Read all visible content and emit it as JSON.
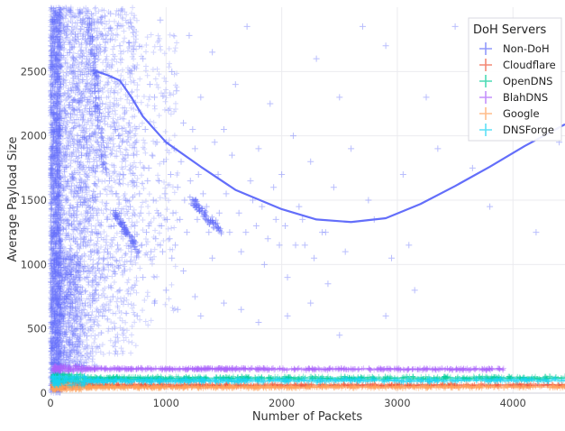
{
  "chart_data": {
    "type": "scatter",
    "xlabel": "Number of Packets",
    "ylabel": "Average Payload Size",
    "xlim": [
      0,
      4450
    ],
    "ylim": [
      0,
      3000
    ],
    "x_ticks": [
      0,
      1000,
      2000,
      3000,
      4000
    ],
    "x_tick_labels": [
      "0",
      "1000",
      "2000",
      "3000",
      "4000"
    ],
    "y_ticks": [
      0,
      500,
      1000,
      1500,
      2000,
      2500
    ],
    "y_tick_labels": [
      "0",
      "500",
      "1000",
      "1500",
      "2000",
      "2500"
    ],
    "grid": true,
    "marker": "cross",
    "legend": {
      "title": "DoH Servers",
      "placement": "top-right"
    },
    "series": [
      {
        "name": "Non-DoH",
        "color": "#636efa",
        "points": [
          [
            60,
            2900
          ],
          [
            90,
            2700
          ],
          [
            150,
            2850
          ],
          [
            200,
            2600
          ],
          [
            250,
            2950
          ],
          [
            300,
            2750
          ],
          [
            330,
            2500
          ],
          [
            380,
            2880
          ],
          [
            400,
            2650
          ],
          [
            420,
            2350
          ],
          [
            450,
            2250
          ],
          [
            480,
            2780
          ],
          [
            500,
            2150
          ],
          [
            520,
            2950
          ],
          [
            560,
            2050
          ],
          [
            600,
            2700
          ],
          [
            620,
            1950
          ],
          [
            650,
            2400
          ],
          [
            700,
            2850
          ],
          [
            720,
            1850
          ],
          [
            760,
            2200
          ],
          [
            800,
            2600
          ],
          [
            850,
            1750
          ],
          [
            900,
            2300
          ],
          [
            950,
            2900
          ],
          [
            1000,
            1950
          ],
          [
            1050,
            2500
          ],
          [
            1100,
            1600
          ],
          [
            1150,
            2100
          ],
          [
            1200,
            2780
          ],
          [
            1250,
            1900
          ],
          [
            1300,
            2300
          ],
          [
            1350,
            1450
          ],
          [
            1400,
            2650
          ],
          [
            1450,
            1700
          ],
          [
            1500,
            2050
          ],
          [
            1550,
            1250
          ],
          [
            1600,
            2400
          ],
          [
            1650,
            1100
          ],
          [
            1700,
            2850
          ],
          [
            1750,
            1500
          ],
          [
            1800,
            1900
          ],
          [
            1850,
            1000
          ],
          [
            1900,
            2250
          ],
          [
            1950,
            1350
          ],
          [
            2000,
            1700
          ],
          [
            2050,
            900
          ],
          [
            2100,
            2000
          ],
          [
            2150,
            1450
          ],
          [
            2200,
            1150
          ],
          [
            2250,
            1800
          ],
          [
            2300,
            2600
          ],
          [
            2350,
            1250
          ],
          [
            2400,
            850
          ],
          [
            2450,
            1600
          ],
          [
            2500,
            2300
          ],
          [
            2550,
            1100
          ],
          [
            2600,
            1900
          ],
          [
            2700,
            2850
          ],
          [
            2750,
            1500
          ],
          [
            2800,
            1350
          ],
          [
            2900,
            2700
          ],
          [
            2950,
            1050
          ],
          [
            3050,
            1700
          ],
          [
            3100,
            1150
          ],
          [
            3150,
            800
          ],
          [
            3250,
            2300
          ],
          [
            3350,
            1900
          ],
          [
            3500,
            2850
          ],
          [
            3650,
            1750
          ],
          [
            3800,
            1450
          ],
          [
            3950,
            2700
          ],
          [
            4200,
            1250
          ],
          [
            4400,
            1950
          ],
          [
            100,
            1800
          ],
          [
            150,
            1500
          ],
          [
            200,
            1200
          ],
          [
            250,
            900
          ],
          [
            300,
            700
          ],
          [
            350,
            1100
          ],
          [
            400,
            1400
          ],
          [
            450,
            600
          ],
          [
            500,
            1000
          ],
          [
            550,
            1300
          ],
          [
            600,
            800
          ],
          [
            650,
            1500
          ],
          [
            700,
            1100
          ],
          [
            750,
            600
          ],
          [
            800,
            900
          ],
          [
            850,
            1300
          ],
          [
            900,
            700
          ],
          [
            950,
            1150
          ],
          [
            1000,
            800
          ],
          [
            1050,
            1050
          ],
          [
            1100,
            650
          ],
          [
            1150,
            950
          ],
          [
            1250,
            750
          ],
          [
            1300,
            600
          ],
          [
            1400,
            1050
          ],
          [
            1500,
            700
          ],
          [
            1650,
            650
          ],
          [
            1800,
            550
          ],
          [
            2050,
            600
          ],
          [
            2250,
            700
          ],
          [
            2500,
            450
          ],
          [
            2900,
            600
          ],
          [
            50,
            1000
          ],
          [
            60,
            1500
          ],
          [
            70,
            2000
          ],
          [
            80,
            1200
          ],
          [
            90,
            2400
          ],
          [
            100,
            600
          ],
          [
            110,
            1600
          ],
          [
            120,
            2200
          ],
          [
            130,
            900
          ],
          [
            140,
            1900
          ],
          [
            160,
            1300
          ],
          [
            170,
            2500
          ],
          [
            180,
            700
          ],
          [
            190,
            1700
          ],
          [
            210,
            2100
          ],
          [
            220,
            1000
          ],
          [
            230,
            1450
          ],
          [
            240,
            2750
          ],
          [
            260,
            1150
          ],
          [
            270,
            1850
          ],
          [
            280,
            500
          ],
          [
            290,
            2300
          ],
          [
            310,
            1600
          ],
          [
            320,
            950
          ],
          [
            340,
            2000
          ],
          [
            360,
            1250
          ],
          [
            370,
            1750
          ],
          [
            390,
            800
          ],
          [
            410,
            1950
          ],
          [
            430,
            1550
          ],
          [
            440,
            2150
          ],
          [
            460,
            1050
          ],
          [
            470,
            1850
          ],
          [
            490,
            1350
          ],
          [
            510,
            1650
          ],
          [
            530,
            2450
          ],
          [
            540,
            750
          ],
          [
            570,
            1550
          ],
          [
            580,
            1150
          ],
          [
            590,
            2000
          ],
          [
            610,
            1400
          ],
          [
            630,
            1700
          ],
          [
            640,
            950
          ],
          [
            660,
            1250
          ],
          [
            670,
            1850
          ],
          [
            680,
            2100
          ],
          [
            690,
            1450
          ],
          [
            710,
            1650
          ],
          [
            730,
            1300
          ],
          [
            740,
            1950
          ],
          [
            770,
            1550
          ],
          [
            780,
            1400
          ],
          [
            790,
            1150
          ],
          [
            810,
            1750
          ],
          [
            820,
            2050
          ],
          [
            830,
            1250
          ],
          [
            840,
            1650
          ],
          [
            860,
            2400
          ],
          [
            870,
            1100
          ],
          [
            880,
            1850
          ],
          [
            890,
            1500
          ],
          [
            910,
            1200
          ],
          [
            920,
            1950
          ],
          [
            930,
            1400
          ],
          [
            940,
            1650
          ],
          [
            960,
            1300
          ],
          [
            970,
            1100
          ],
          [
            980,
            1800
          ],
          [
            990,
            1550
          ],
          [
            1010,
            1350
          ],
          [
            1020,
            2200
          ],
          [
            1030,
            1200
          ],
          [
            1040,
            1700
          ],
          [
            1060,
            1400
          ],
          [
            1070,
            1900
          ],
          [
            1080,
            1150
          ],
          [
            1090,
            2350
          ],
          [
            1120,
            1350
          ],
          [
            1130,
            1800
          ],
          [
            1160,
            1500
          ],
          [
            1180,
            1250
          ],
          [
            1210,
            1650
          ],
          [
            1230,
            2050
          ],
          [
            1270,
            1350
          ],
          [
            1280,
            1700
          ],
          [
            1320,
            1550
          ],
          [
            1370,
            1250
          ],
          [
            1420,
            1950
          ],
          [
            1460,
            1400
          ],
          [
            1520,
            1550
          ],
          [
            1570,
            1850
          ],
          [
            1630,
            1400
          ],
          [
            1690,
            1250
          ],
          [
            1730,
            1650
          ],
          [
            1780,
            1300
          ],
          [
            1830,
            1450
          ],
          [
            1880,
            1200
          ],
          [
            1930,
            1600
          ],
          [
            1980,
            1150
          ],
          [
            2030,
            1300
          ],
          [
            2120,
            1150
          ],
          [
            2180,
            1350
          ],
          [
            2280,
            1050
          ],
          [
            2380,
            1250
          ]
        ],
        "clusters": [
          {
            "x_range": [
              0,
              90
            ],
            "y_range": [
              0,
              3000
            ],
            "density": "very dense"
          },
          {
            "x_range": [
              90,
              420
            ],
            "y_range": [
              200,
              3000
            ],
            "density": "dense"
          },
          {
            "x_range": [
              420,
              750
            ],
            "y_range": [
              300,
              3000
            ],
            "density": "medium"
          },
          {
            "x_range": [
              750,
              1100
            ],
            "y_range": [
              500,
              2800
            ],
            "density": "sparse"
          }
        ],
        "streaks": [
          [
            [
              330,
              2900
            ],
            [
              470,
              1700
            ]
          ],
          [
            [
              560,
              1400
            ],
            [
              760,
              1100
            ]
          ],
          [
            [
              1220,
              1510
            ],
            [
              1480,
              1250
            ]
          ]
        ],
        "trend": [
          [
            370,
            2480
          ],
          [
            400,
            2500
          ],
          [
            500,
            2470
          ],
          [
            600,
            2430
          ],
          [
            700,
            2300
          ],
          [
            800,
            2150
          ],
          [
            1000,
            1950
          ],
          [
            1300,
            1760
          ],
          [
            1600,
            1580
          ],
          [
            2000,
            1430
          ],
          [
            2300,
            1350
          ],
          [
            2600,
            1330
          ],
          [
            2900,
            1360
          ],
          [
            3200,
            1470
          ],
          [
            3500,
            1610
          ],
          [
            3800,
            1760
          ],
          [
            4100,
            1920
          ],
          [
            4450,
            2090
          ]
        ]
      },
      {
        "name": "Cloudflare",
        "color": "#ef553b",
        "band": {
          "x_range": [
            20,
            4450
          ],
          "y_center": [
            60,
            62
          ],
          "y_spread": 22
        }
      },
      {
        "name": "OpenDNS",
        "color": "#00cc96",
        "band": {
          "x_range": [
            20,
            4450
          ],
          "y_center": [
            115,
            118
          ],
          "y_spread": 28
        }
      },
      {
        "name": "BlahDNS",
        "color": "#ab63fa",
        "band": {
          "x_range": [
            30,
            3920
          ],
          "y_center": [
            190,
            185
          ],
          "y_spread": 18
        }
      },
      {
        "name": "Google",
        "color": "#ffa15a",
        "band": {
          "x_range": [
            20,
            4450
          ],
          "y_center": [
            45,
            48
          ],
          "y_spread": 20
        }
      },
      {
        "name": "DNSForge",
        "color": "#19d3f3",
        "band": {
          "x_range": [
            20,
            4450
          ],
          "y_center": [
            95,
            100
          ],
          "y_spread": 30
        }
      }
    ]
  }
}
